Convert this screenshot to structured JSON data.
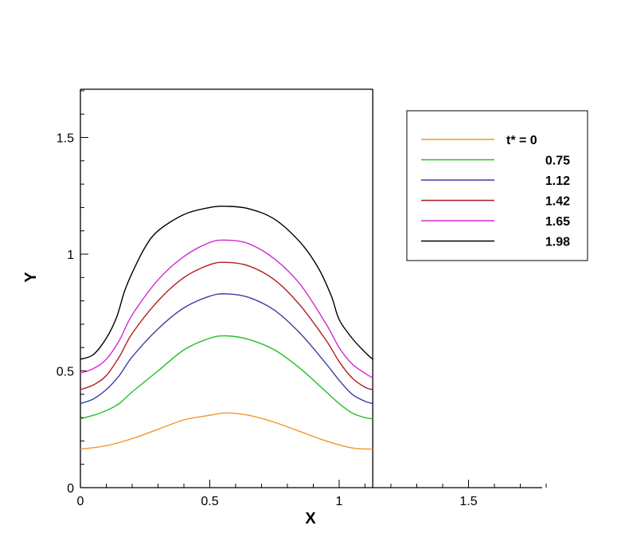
{
  "chart_data": {
    "type": "line",
    "xlabel": "X",
    "ylabel": "Y",
    "xlim": [
      0,
      1.8
    ],
    "ylim": [
      0,
      1.72
    ],
    "domain_xmax": 1.13,
    "x_ticks": [
      {
        "value": 0,
        "label": "0"
      },
      {
        "value": 0.5,
        "label": "0.5"
      },
      {
        "value": 1,
        "label": "1"
      },
      {
        "value": 1.5,
        "label": "1.5"
      }
    ],
    "y_ticks": [
      {
        "value": 0,
        "label": "0"
      },
      {
        "value": 0.5,
        "label": "0.5"
      },
      {
        "value": 1,
        "label": "1"
      },
      {
        "value": 1.5,
        "label": "1.5"
      }
    ],
    "legend_position": "top-right",
    "series": [
      {
        "name": "t* = 0",
        "color": "#f0962a",
        "x": [
          0,
          0.1,
          0.2,
          0.3,
          0.4,
          0.5,
          0.565,
          0.65,
          0.75,
          0.85,
          0.95,
          1.05,
          1.13
        ],
        "y": [
          0.165,
          0.18,
          0.21,
          0.25,
          0.29,
          0.31,
          0.32,
          0.31,
          0.28,
          0.24,
          0.2,
          0.17,
          0.165
        ]
      },
      {
        "name": "0.75",
        "color": "#22c022",
        "x": [
          0,
          0.05,
          0.1,
          0.15,
          0.2,
          0.3,
          0.4,
          0.5,
          0.565,
          0.65,
          0.75,
          0.85,
          0.95,
          1.0,
          1.05,
          1.1,
          1.13
        ],
        "y": [
          0.295,
          0.31,
          0.33,
          0.36,
          0.41,
          0.5,
          0.59,
          0.64,
          0.65,
          0.635,
          0.59,
          0.51,
          0.41,
          0.36,
          0.32,
          0.3,
          0.295
        ]
      },
      {
        "name": "1.12",
        "color": "#3a3fa8",
        "x": [
          0,
          0.05,
          0.1,
          0.15,
          0.2,
          0.3,
          0.4,
          0.5,
          0.565,
          0.65,
          0.75,
          0.85,
          0.95,
          1.0,
          1.05,
          1.1,
          1.13
        ],
        "y": [
          0.36,
          0.38,
          0.42,
          0.48,
          0.56,
          0.68,
          0.77,
          0.82,
          0.83,
          0.815,
          0.76,
          0.66,
          0.53,
          0.46,
          0.4,
          0.37,
          0.36
        ]
      },
      {
        "name": "1.42",
        "color": "#b01e1e",
        "x": [
          0,
          0.05,
          0.1,
          0.15,
          0.2,
          0.3,
          0.4,
          0.5,
          0.565,
          0.65,
          0.75,
          0.85,
          0.95,
          1.0,
          1.05,
          1.1,
          1.13
        ],
        "y": [
          0.42,
          0.44,
          0.48,
          0.56,
          0.66,
          0.8,
          0.9,
          0.955,
          0.965,
          0.95,
          0.89,
          0.78,
          0.63,
          0.54,
          0.47,
          0.43,
          0.42
        ]
      },
      {
        "name": "1.65",
        "color": "#d22ad2",
        "x": [
          0,
          0.05,
          0.1,
          0.15,
          0.2,
          0.3,
          0.4,
          0.5,
          0.565,
          0.65,
          0.75,
          0.85,
          0.95,
          1.0,
          1.05,
          1.1,
          1.13
        ],
        "y": [
          0.49,
          0.51,
          0.55,
          0.63,
          0.74,
          0.89,
          0.99,
          1.05,
          1.06,
          1.045,
          0.98,
          0.87,
          0.7,
          0.6,
          0.53,
          0.49,
          0.47
        ]
      },
      {
        "name": "1.98",
        "color": "#000000",
        "x": [
          0,
          0.05,
          0.1,
          0.14,
          0.17,
          0.2,
          0.25,
          0.3,
          0.4,
          0.5,
          0.565,
          0.65,
          0.75,
          0.85,
          0.92,
          0.97,
          1.0,
          1.05,
          1.1,
          1.13
        ],
        "y": [
          0.55,
          0.57,
          0.64,
          0.73,
          0.84,
          0.92,
          1.03,
          1.1,
          1.17,
          1.2,
          1.205,
          1.195,
          1.15,
          1.05,
          0.94,
          0.82,
          0.72,
          0.64,
          0.58,
          0.55
        ]
      }
    ]
  }
}
